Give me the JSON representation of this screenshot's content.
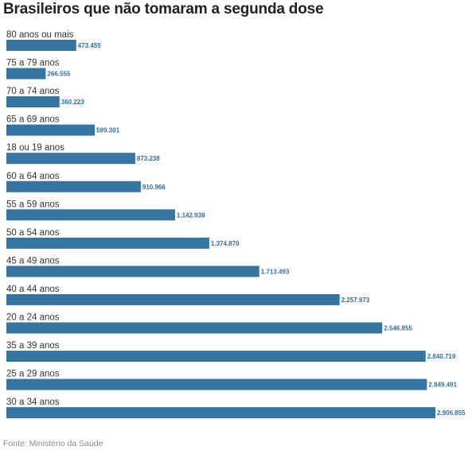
{
  "title": "Brasileiros que não tomaram a segunda dose",
  "source": "Fonte: Ministério da Saúde",
  "colors": {
    "bar": "#3675a1",
    "value_label": "#2f6f96"
  },
  "chart_data": {
    "type": "bar",
    "orientation": "horizontal",
    "title": "Brasileiros que não tomaram a segunda dose",
    "categories": [
      "80 anos ou mais",
      "75 a 79 anos",
      "70 a 74 anos",
      "65 a 69 anos",
      "18 ou 19 anos",
      "60 a 64 anos",
      "55 a 59 anos",
      "50 a 54 anos",
      "45 a 49 anos",
      "40 a 44 anos",
      "20 a 24 anos",
      "35 a 39 anos",
      "25 a 29 anos",
      "30 a 34 anos"
    ],
    "values": [
      473455,
      266555,
      360223,
      599301,
      873238,
      910966,
      1142938,
      1374870,
      1713493,
      2257973,
      2546855,
      2840719,
      2849491,
      2906855
    ],
    "value_labels": [
      "473.455",
      "266.555",
      "360.223",
      "599.301",
      "873.238",
      "910.966",
      "1.142.938",
      "1.374.870",
      "1.713.493",
      "2.257.973",
      "2.546.855",
      "2.840.719",
      "2.849.491",
      "2.906.855"
    ],
    "xlim": [
      0,
      2906855
    ],
    "grid": false,
    "legend": "none"
  }
}
